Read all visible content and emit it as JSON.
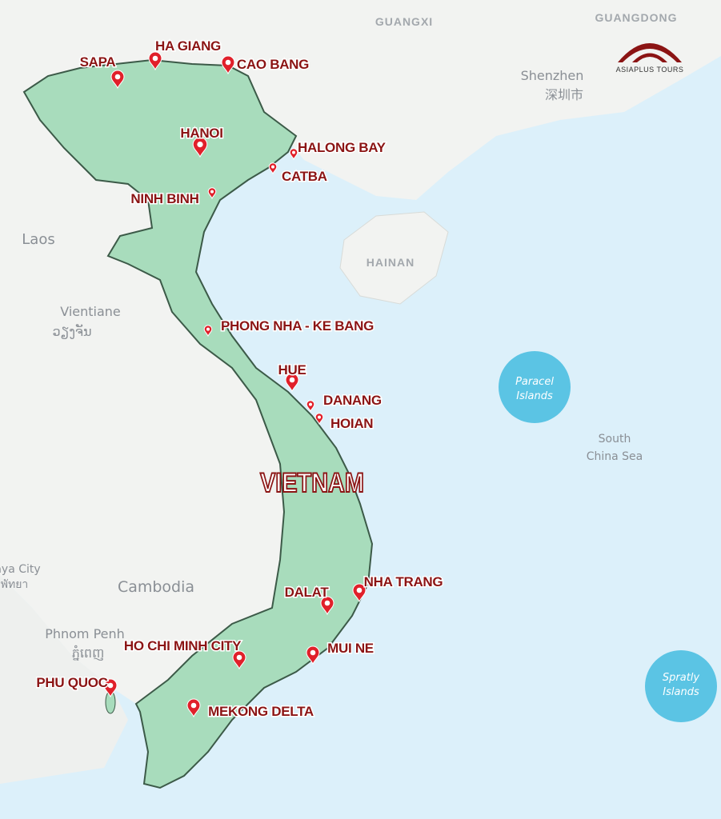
{
  "logo": {
    "text": "ASIAPLUS TOURS"
  },
  "country_label": "VIETNAM",
  "destinations": [
    {
      "name": "SAPA"
    },
    {
      "name": "HA GIANG"
    },
    {
      "name": "CAO BANG"
    },
    {
      "name": "HANOI"
    },
    {
      "name": "HALONG BAY"
    },
    {
      "name": "CATBA"
    },
    {
      "name": "NINH BINH"
    },
    {
      "name": "PHONG NHA - KE BANG"
    },
    {
      "name": "HUE"
    },
    {
      "name": "DANANG"
    },
    {
      "name": "HOIAN"
    },
    {
      "name": "NHA TRANG"
    },
    {
      "name": "DALAT"
    },
    {
      "name": "MUI NE"
    },
    {
      "name": "HO CHI MINH CITY"
    },
    {
      "name": "PHU QUOC"
    },
    {
      "name": "MEKONG DELTA"
    }
  ],
  "map_labels": [
    "GUANGXI",
    "GUANGDONG",
    "Shenzhen",
    "深圳市",
    "HAINAN",
    "Laos",
    "Vientiane",
    "ວຽງຈັນ",
    "Paracel",
    "Islands",
    "South",
    "China Sea",
    "Spratly",
    "Islands",
    "Cambodia",
    "Phnom Penh",
    "ភ្នំពេញ",
    "aya City",
    "พัทยา"
  ]
}
